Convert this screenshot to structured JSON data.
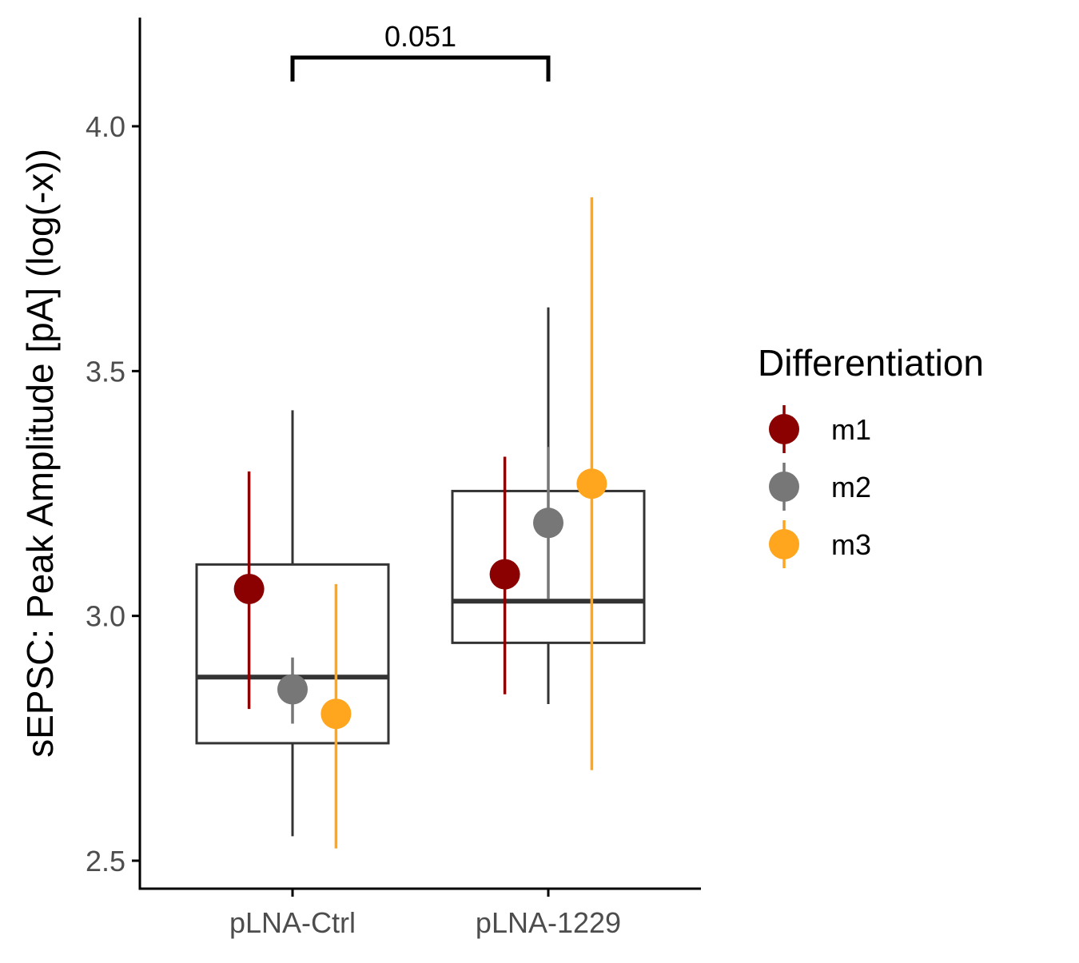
{
  "chart_data": {
    "type": "box",
    "ylabel": "sEPSC: Peak Amplitude [pA] (log(-x))",
    "xlabel": "",
    "ylim": [
      2.445,
      4.22
    ],
    "yticks": [
      {
        "value": 2.5,
        "label": "2.5"
      },
      {
        "value": 3.0,
        "label": "3.0"
      },
      {
        "value": 3.5,
        "label": "3.5"
      },
      {
        "value": 4.0,
        "label": "4.0"
      }
    ],
    "categories": [
      "pLNA-Ctrl",
      "pLNA-1229"
    ],
    "boxes": [
      {
        "category": "pLNA-Ctrl",
        "whisker_low": 2.55,
        "q1": 2.74,
        "median": 2.875,
        "q3": 3.105,
        "whisker_high": 3.42
      },
      {
        "category": "pLNA-1229",
        "whisker_low": 2.82,
        "q1": 2.945,
        "median": 3.03,
        "q3": 3.255,
        "whisker_high": 3.63
      }
    ],
    "series": [
      {
        "name": "m1",
        "color": "#8B0000",
        "offset": -0.17,
        "points": [
          {
            "category": "pLNA-Ctrl",
            "mean": 3.055,
            "low": 2.81,
            "high": 3.295
          },
          {
            "category": "pLNA-1229",
            "mean": 3.085,
            "low": 2.84,
            "high": 3.325
          }
        ]
      },
      {
        "name": "m2",
        "color": "#777777",
        "offset": 0.0,
        "points": [
          {
            "category": "pLNA-Ctrl",
            "mean": 2.85,
            "low": 2.78,
            "high": 2.915
          },
          {
            "category": "pLNA-1229",
            "mean": 3.19,
            "low": 3.035,
            "high": 3.345
          }
        ]
      },
      {
        "name": "m3",
        "color": "#FFA51E",
        "offset": 0.17,
        "points": [
          {
            "category": "pLNA-Ctrl",
            "mean": 2.8,
            "low": 2.525,
            "high": 3.065
          },
          {
            "category": "pLNA-1229",
            "mean": 3.27,
            "low": 2.685,
            "high": 3.855
          }
        ]
      }
    ],
    "significance": {
      "from": "pLNA-Ctrl",
      "to": "pLNA-1229",
      "label": "0.051"
    },
    "legend": {
      "title": "Differentiation",
      "position": "right"
    },
    "grid": false,
    "colors": {
      "box": "#333333",
      "axis": "#000000",
      "tick_text": "#4d4d4d"
    }
  }
}
